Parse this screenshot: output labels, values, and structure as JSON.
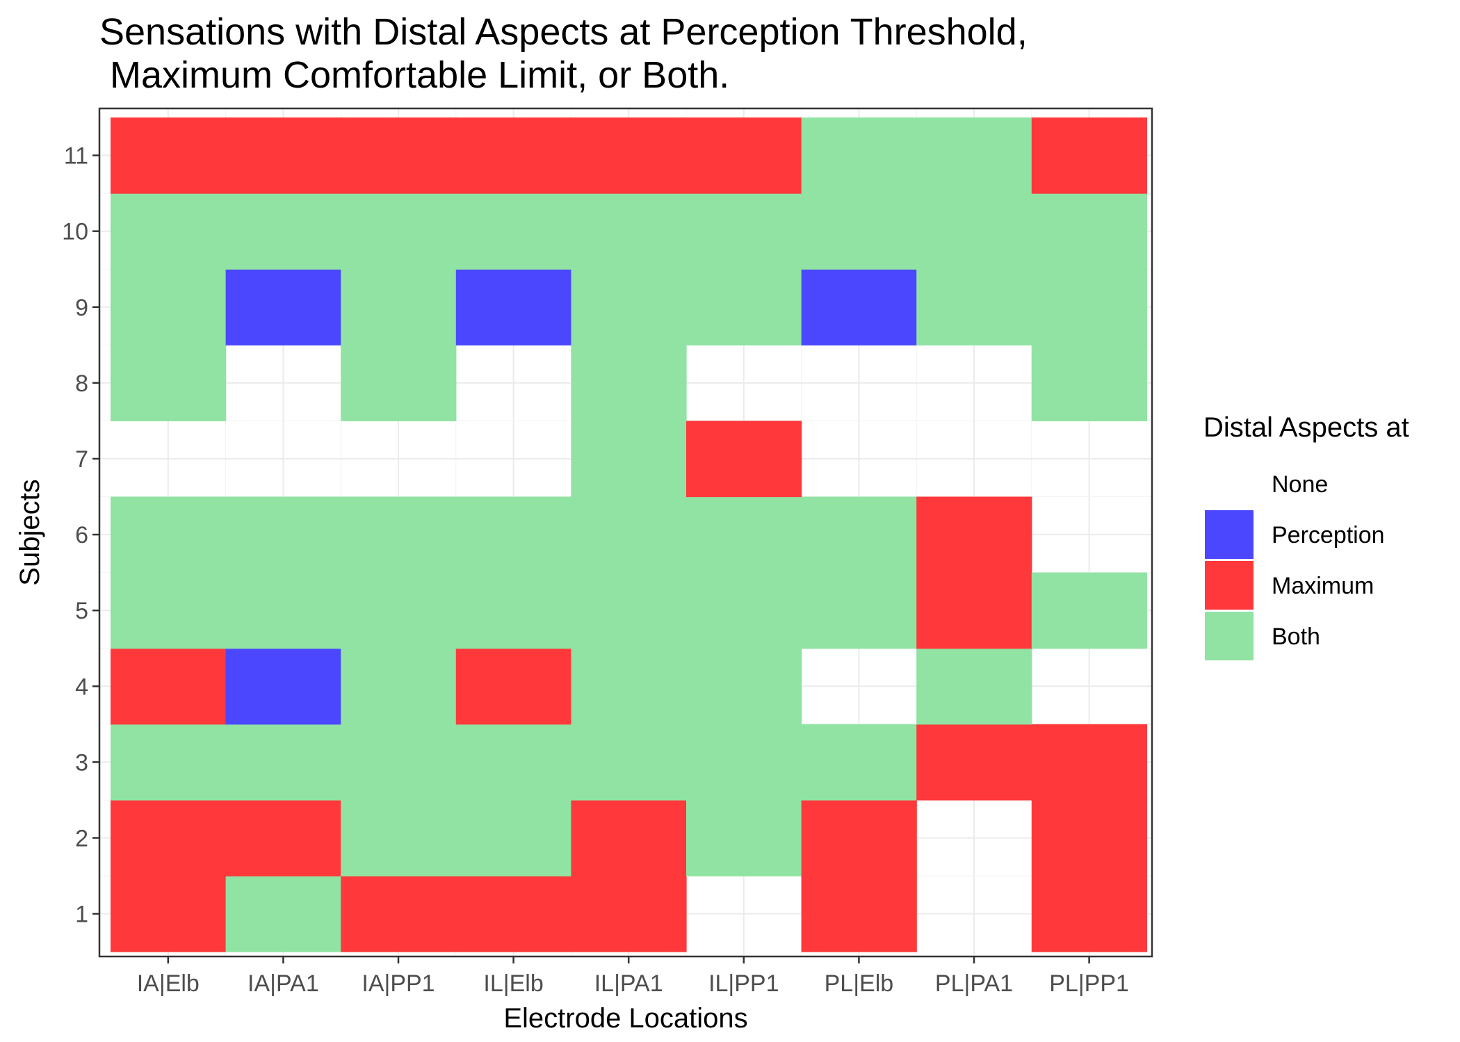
{
  "chart_data": {
    "type": "heatmap",
    "title": [
      "Sensations with Distal Aspects at Perception Threshold,",
      " Maximum Comfortable Limit, or Both."
    ],
    "xlabel": "Electrode Locations",
    "ylabel": "Subjects",
    "x_categories": [
      "IA|Elb",
      "IA|PA1",
      "IA|PP1",
      "IL|Elb",
      "IL|PA1",
      "IL|PP1",
      "PL|Elb",
      "PL|PA1",
      "PL|PP1"
    ],
    "y_categories": [
      "1",
      "2",
      "3",
      "4",
      "5",
      "6",
      "7",
      "8",
      "9",
      "10",
      "11"
    ],
    "grid": true,
    "legend": {
      "title": "Distal Aspects at",
      "position": "right",
      "entries": [
        {
          "key": "None",
          "label": "None",
          "color": "#ffffff"
        },
        {
          "key": "Perception",
          "label": "Perception",
          "color": "#4b47ff"
        },
        {
          "key": "Maximum",
          "label": "Maximum",
          "color": "#ff383b"
        },
        {
          "key": "Both",
          "label": "Both",
          "color": "#90e3a2"
        }
      ]
    },
    "values_by_subject": {
      "11": [
        "Maximum",
        "Maximum",
        "Maximum",
        "Maximum",
        "Maximum",
        "Maximum",
        "Both",
        "Both",
        "Maximum"
      ],
      "10": [
        "Both",
        "Both",
        "Both",
        "Both",
        "Both",
        "Both",
        "Both",
        "Both",
        "Both"
      ],
      "9": [
        "Both",
        "Perception",
        "Both",
        "Perception",
        "Both",
        "Both",
        "Perception",
        "Both",
        "Both"
      ],
      "8": [
        "Both",
        "None",
        "Both",
        "None",
        "Both",
        "None",
        "None",
        "None",
        "Both"
      ],
      "7": [
        "None",
        "None",
        "None",
        "None",
        "Both",
        "Maximum",
        "None",
        "None",
        "None"
      ],
      "6": [
        "Both",
        "Both",
        "Both",
        "Both",
        "Both",
        "Both",
        "Both",
        "Maximum",
        "None"
      ],
      "5": [
        "Both",
        "Both",
        "Both",
        "Both",
        "Both",
        "Both",
        "Both",
        "Maximum",
        "Both"
      ],
      "4": [
        "Maximum",
        "Perception",
        "Both",
        "Maximum",
        "Both",
        "Both",
        "None",
        "Both",
        "None"
      ],
      "3": [
        "Both",
        "Both",
        "Both",
        "Both",
        "Both",
        "Both",
        "Both",
        "Maximum",
        "Maximum"
      ],
      "2": [
        "Maximum",
        "Maximum",
        "Both",
        "Both",
        "Maximum",
        "Both",
        "Maximum",
        "None",
        "Maximum"
      ],
      "1": [
        "Maximum",
        "Both",
        "Maximum",
        "Maximum",
        "Maximum",
        "None",
        "Maximum",
        "None",
        "Maximum"
      ]
    }
  }
}
